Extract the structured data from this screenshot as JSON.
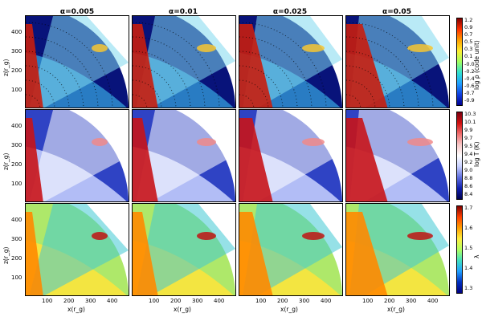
{
  "columns": [
    "α=0.005",
    "α=0.01",
    "α=0.025",
    "α=0.05"
  ],
  "rows": [
    {
      "name": "density",
      "ylabel": "z(r_g)",
      "cbar_label": "log ρ (code unit)",
      "cbar_ticks": [
        "1.2",
        "0.9",
        "0.7",
        "0.5",
        "0.3",
        "0.1",
        "-0.0",
        "-0.2",
        "-0.4",
        "-0.6",
        "-0.7",
        "-0.9"
      ],
      "colors": {
        "bg": "#08137a",
        "mid": "#2f8fd0",
        "cone": "#7fd9ef",
        "hot": "#c81e0e",
        "warm": "#f6c531"
      }
    },
    {
      "name": "temperature",
      "ylabel": "z(r_g)",
      "cbar_label": "log T (K)",
      "cbar_ticks": [
        "10.3",
        "10.1",
        "9.9",
        "9.7",
        "9.5",
        "9.4",
        "9.2",
        "9.0",
        "8.8",
        "8.6",
        "8.4"
      ],
      "colors": {
        "bg": "#2f43c4",
        "mid": "#c9d2ff",
        "cone": "#ffffff",
        "hot": "#c8141a",
        "warm": "#f08a8a"
      }
    },
    {
      "name": "lambda",
      "ylabel": "z(r_g)",
      "cbar_label": "λ",
      "cbar_ticks": [
        "1.7",
        "1.6",
        "1.5",
        "1.4",
        "1.3"
      ],
      "colors": {
        "bg": "#aee86a",
        "mid": "#ffe43a",
        "cone": "#3fc9d4",
        "hot": "#ff8a00",
        "warm": "#c01414"
      }
    }
  ],
  "y_ticks": [
    "400",
    "300",
    "200",
    "100"
  ],
  "x_ticks": [
    "100",
    "200",
    "300",
    "400"
  ],
  "xlabel": "x(r_g)"
}
